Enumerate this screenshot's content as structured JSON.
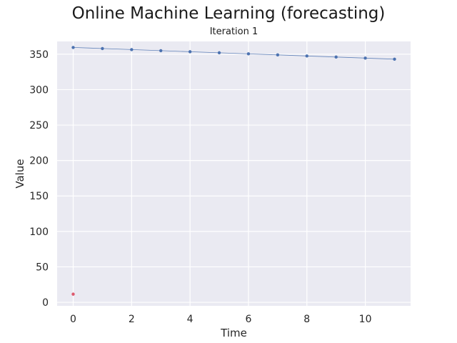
{
  "chart_data": {
    "type": "line",
    "title": "Online Machine Learning (forecasting)",
    "subtitle": "Iteration 1",
    "xlabel": "Time",
    "ylabel": "Value",
    "xlim": [
      -0.55,
      11.55
    ],
    "ylim": [
      -5,
      368
    ],
    "x_ticks": [
      0,
      2,
      4,
      6,
      8,
      10
    ],
    "y_ticks": [
      0,
      50,
      100,
      150,
      200,
      250,
      300,
      350
    ],
    "grid": true,
    "series": [
      {
        "color": "#4c72b0",
        "x": [
          0,
          1,
          2,
          3,
          4,
          5,
          6,
          7,
          8,
          9,
          10,
          11
        ],
        "values": [
          359.5,
          358.0,
          356.5,
          355.0,
          353.5,
          352.0,
          350.5,
          349.0,
          347.5,
          346.0,
          344.5,
          343.0
        ]
      },
      {
        "color": "#dd5a6e",
        "x": [
          0
        ],
        "values": [
          11.5
        ]
      }
    ],
    "background": "#eaeaf2"
  }
}
